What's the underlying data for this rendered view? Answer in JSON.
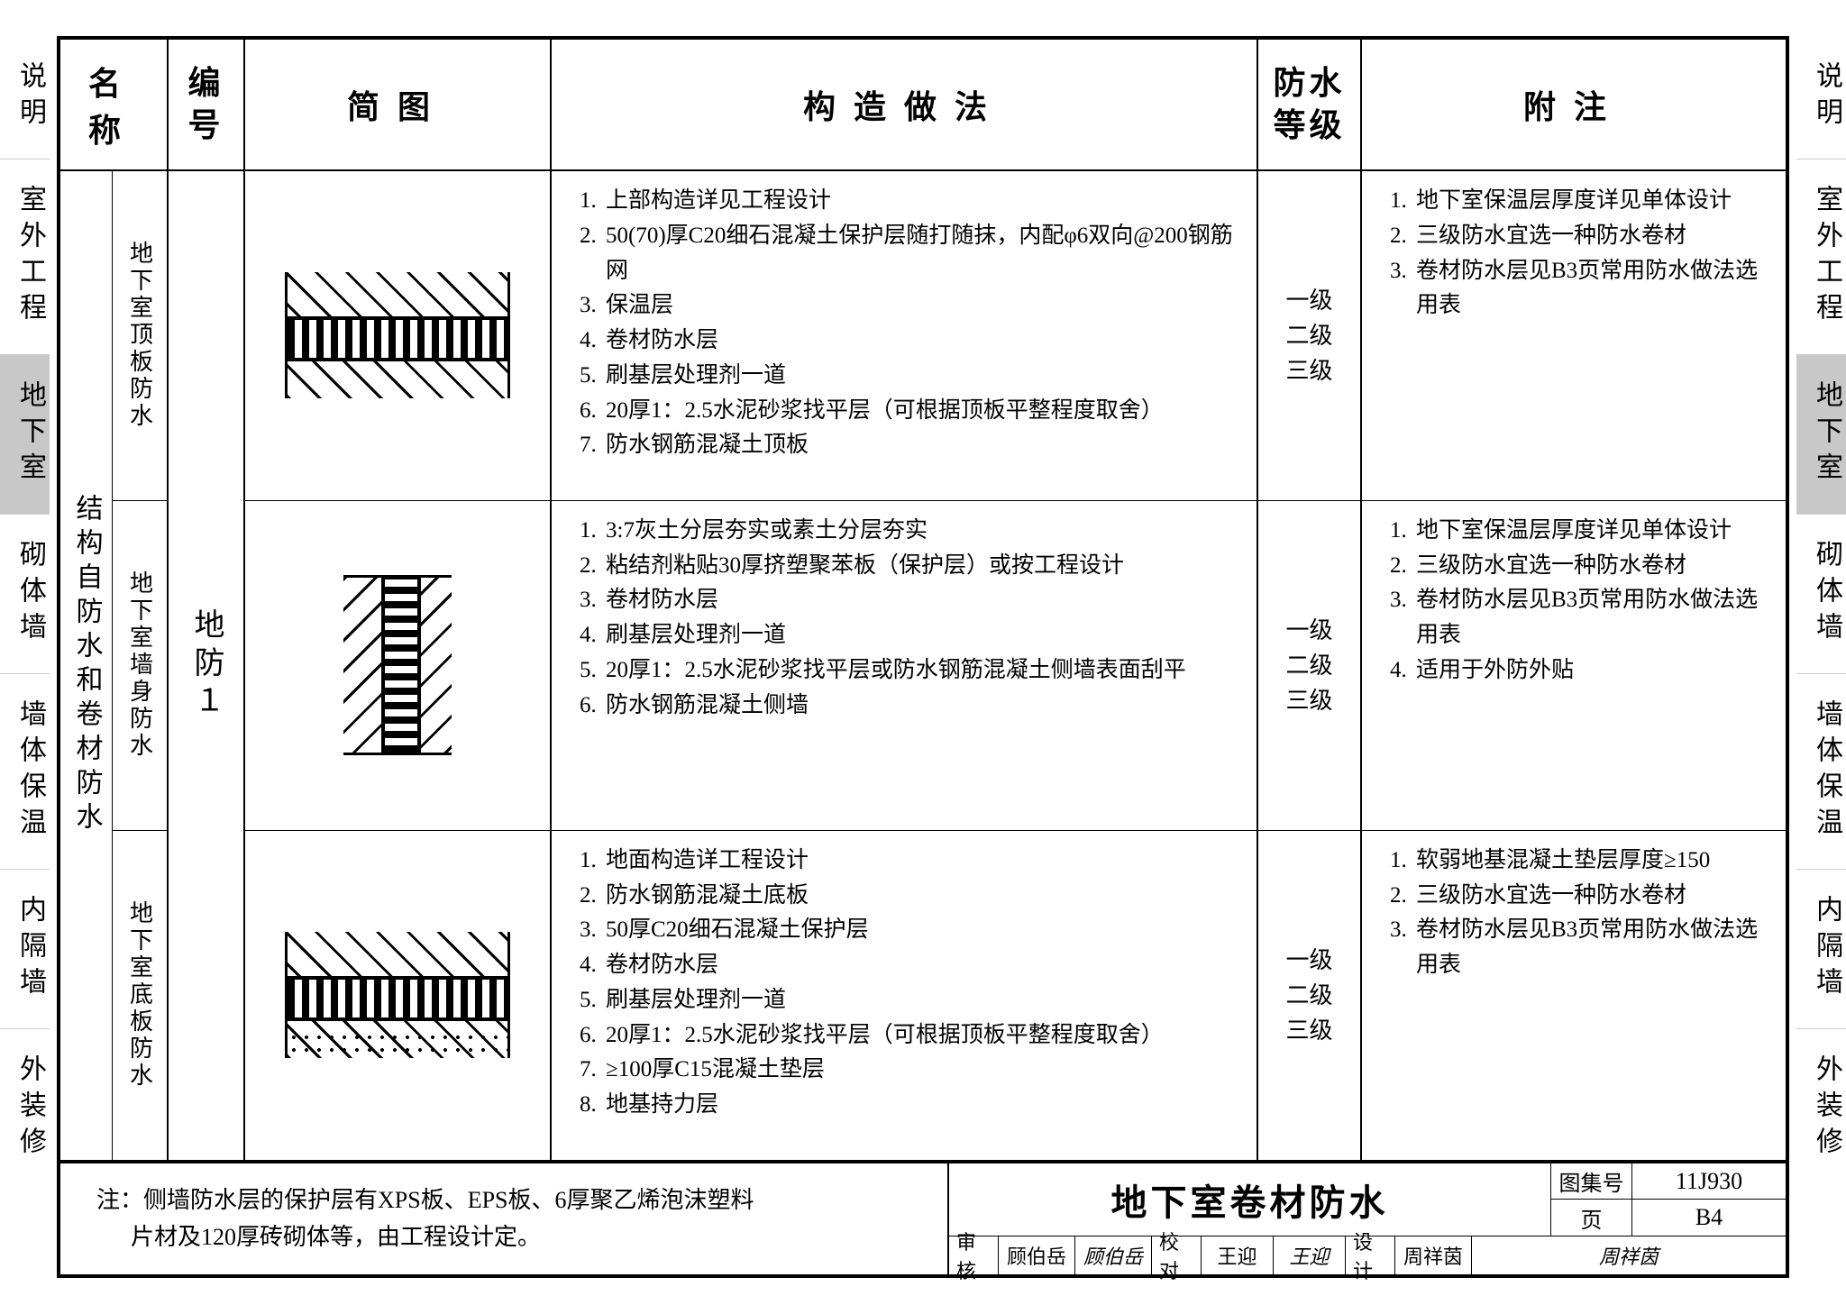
{
  "side_tabs": [
    "说明",
    "室外工程",
    "地下室",
    "砌体墙",
    "墙体保温",
    "内隔墙",
    "外装修"
  ],
  "active_tab_index": 2,
  "headers": {
    "name": "名称",
    "code_l1": "编",
    "code_l2": "号",
    "diagram": "简图",
    "method": "构造做法",
    "grade_l1": "防水",
    "grade_l2": "等级",
    "note": "附注"
  },
  "name_main": "结构自防水和卷材防水",
  "code": "地防１",
  "rows": [
    {
      "sub_name": "地下室顶板防水",
      "diagram_class": "diagram",
      "methods": [
        "上部构造详见工程设计",
        "50(70)厚C20细石混凝土保护层随打随抹，内配φ6双向@200钢筋网",
        "保温层",
        "卷材防水层",
        "刷基层处理剂一道",
        "20厚1：2.5水泥砂浆找平层（可根据顶板平整程度取舍）",
        "防水钢筋混凝土顶板"
      ],
      "grades": [
        "一级",
        "二级",
        "三级"
      ],
      "notes": [
        "地下室保温层厚度详见单体设计",
        "三级防水宜选一种防水卷材",
        "卷材防水层见B3页常用防水做法选用表"
      ]
    },
    {
      "sub_name": "地下室墙身防水",
      "diagram_class": "diagram vert",
      "methods": [
        "3:7灰土分层夯实或素土分层夯实",
        "粘结剂粘贴30厚挤塑聚苯板（保护层）或按工程设计",
        "卷材防水层",
        "刷基层处理剂一道",
        "20厚1：2.5水泥砂浆找平层或防水钢筋混凝土侧墙表面刮平",
        "防水钢筋混凝土侧墙"
      ],
      "grades": [
        "一级",
        "二级",
        "三级"
      ],
      "notes": [
        "地下室保温层厚度详见单体设计",
        "三级防水宜选一种防水卷材",
        "卷材防水层见B3页常用防水做法选用表",
        "适用于外防外贴"
      ]
    },
    {
      "sub_name": "地下室底板防水",
      "diagram_class": "diagram bottom",
      "methods": [
        "地面构造详工程设计",
        "防水钢筋混凝土底板",
        "50厚C20细石混凝土保护层",
        "卷材防水层",
        "刷基层处理剂一道",
        "20厚1：2.5水泥砂浆找平层（可根据顶板平整程度取舍）",
        "≥100厚C15混凝土垫层",
        "地基持力层"
      ],
      "grades": [
        "一级",
        "二级",
        "三级"
      ],
      "notes": [
        "软弱地基混凝土垫层厚度≥150",
        "三级防水宜选一种防水卷材",
        "卷材防水层见B3页常用防水做法选用表"
      ]
    }
  ],
  "footer_note_l1": "注：侧墙防水层的保护层有XPS板、EPS板、6厚聚乙烯泡沫塑料",
  "footer_note_l2": "片材及120厚砖砌体等，由工程设计定。",
  "title": "地下室卷材防水",
  "atlas_label": "图集号",
  "atlas_no": "11J930",
  "page_label": "页",
  "page_no": "B4",
  "approvals": {
    "review_l": "审核",
    "review_n": "顾伯岳",
    "review_s": "顾伯岳",
    "check_l": "校对",
    "check_n": "王迎",
    "check_s": "王迎",
    "design_l": "设计",
    "design_n": "周祥茵",
    "design_s": "周祥茵"
  }
}
